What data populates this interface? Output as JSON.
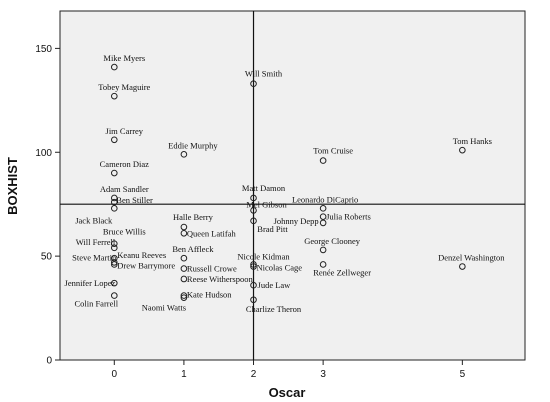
{
  "chart_data": {
    "type": "scatter",
    "xlabel": "Oscar",
    "ylabel": "BOXHIST",
    "xlim": [
      -0.78,
      5.9
    ],
    "ylim": [
      0,
      168
    ],
    "x_ticks": [
      0,
      1,
      2,
      3,
      5
    ],
    "x_tick_labels": [
      "0",
      "1",
      "2",
      "3",
      "5"
    ],
    "y_ticks": [
      0,
      50,
      100,
      150
    ],
    "y_tick_labels": [
      "0",
      "50",
      "100",
      "150"
    ],
    "reference_lines": {
      "x": 2,
      "y": 75
    },
    "grid": false,
    "legend": "none",
    "colors": {
      "plot_background": "#f0f0f0",
      "marker": "#222222",
      "text": "#111111"
    },
    "points": [
      {
        "label": "Mike Myers",
        "x": 0,
        "y": 141
      },
      {
        "label": "Tobey Maguire",
        "x": 0,
        "y": 127
      },
      {
        "label": "Jim Carrey",
        "x": 0,
        "y": 106
      },
      {
        "label": "Cameron Diaz",
        "x": 0,
        "y": 90
      },
      {
        "label": "Adam Sandler",
        "x": 0,
        "y": 78
      },
      {
        "label": "Ben Stiller",
        "x": 0,
        "y": 76
      },
      {
        "label": "Jack Black",
        "x": 0,
        "y": 73
      },
      {
        "label": "Bruce Willis",
        "x": 0,
        "y": 56
      },
      {
        "label": "Will Ferrell",
        "x": 0,
        "y": 54
      },
      {
        "label": "Keanu Reeves",
        "x": 0,
        "y": 49
      },
      {
        "label": "Steve Martin",
        "x": 0,
        "y": 47
      },
      {
        "label": "Drew Barrymore",
        "x": 0,
        "y": 46
      },
      {
        "label": "Jennifer Lopez",
        "x": 0,
        "y": 37
      },
      {
        "label": "Colin Farrell",
        "x": 0,
        "y": 31
      },
      {
        "label": "Eddie Murphy",
        "x": 1,
        "y": 99
      },
      {
        "label": "Halle Berry",
        "x": 1,
        "y": 64
      },
      {
        "label": "Queen Latifah",
        "x": 1,
        "y": 61
      },
      {
        "label": "Ben Affleck",
        "x": 1,
        "y": 49
      },
      {
        "label": "Russell Crowe",
        "x": 1,
        "y": 44
      },
      {
        "label": "Reese Witherspoon",
        "x": 1,
        "y": 39
      },
      {
        "label": "Kate Hudson",
        "x": 1,
        "y": 31
      },
      {
        "label": "Naomi Watts",
        "x": 1,
        "y": 30
      },
      {
        "label": "Will Smith",
        "x": 2,
        "y": 133
      },
      {
        "label": "Matt Damon",
        "x": 2,
        "y": 78
      },
      {
        "label": "Mel Gibson",
        "x": 2,
        "y": 72
      },
      {
        "label": "Brad Pitt",
        "x": 2,
        "y": 67
      },
      {
        "label": "Nicole Kidman",
        "x": 2,
        "y": 46
      },
      {
        "label": "Nicolas Cage",
        "x": 2,
        "y": 45
      },
      {
        "label": "Jude Law",
        "x": 2,
        "y": 36
      },
      {
        "label": "Charlize Theron",
        "x": 2,
        "y": 29
      },
      {
        "label": "Tom Cruise",
        "x": 3,
        "y": 96
      },
      {
        "label": "Leonardo DiCaprio",
        "x": 3,
        "y": 73
      },
      {
        "label": "Julia Roberts",
        "x": 3,
        "y": 69
      },
      {
        "label": "Johnny Depp",
        "x": 3,
        "y": 66
      },
      {
        "label": "George Clooney",
        "x": 3,
        "y": 53
      },
      {
        "label": "Renée Zellweger",
        "x": 3,
        "y": 46
      },
      {
        "label": "Tom Hanks",
        "x": 5,
        "y": 101
      },
      {
        "label": "Denzel Washington",
        "x": 5,
        "y": 45
      }
    ]
  }
}
